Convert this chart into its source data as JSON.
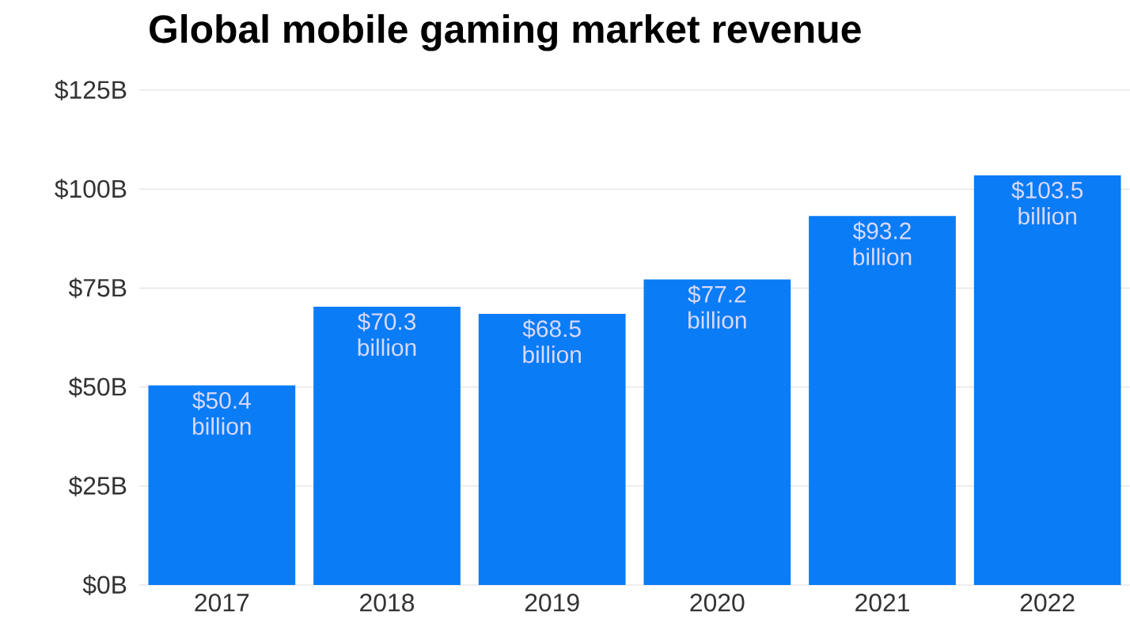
{
  "chart_data": {
    "type": "bar",
    "title": "Global mobile gaming market revenue",
    "categories": [
      "2017",
      "2018",
      "2019",
      "2020",
      "2021",
      "2022"
    ],
    "values": [
      50.4,
      70.3,
      68.5,
      77.2,
      93.2,
      103.5
    ],
    "value_labels": [
      "$50.4 billion",
      "$70.3 billion",
      "$68.5 billion",
      "$77.2 billion",
      "$93.2 billion",
      "$103.5 billion"
    ],
    "color": "#0a7cf6",
    "ylim": [
      0,
      125
    ],
    "yticks": [
      {
        "value": 0,
        "label": "$0B"
      },
      {
        "value": 25,
        "label": "$25B"
      },
      {
        "value": 50,
        "label": "$50B"
      },
      {
        "value": 75,
        "label": "$75B"
      },
      {
        "value": 100,
        "label": "$100B"
      },
      {
        "value": 125,
        "label": "$125B"
      }
    ],
    "grid": "y"
  }
}
